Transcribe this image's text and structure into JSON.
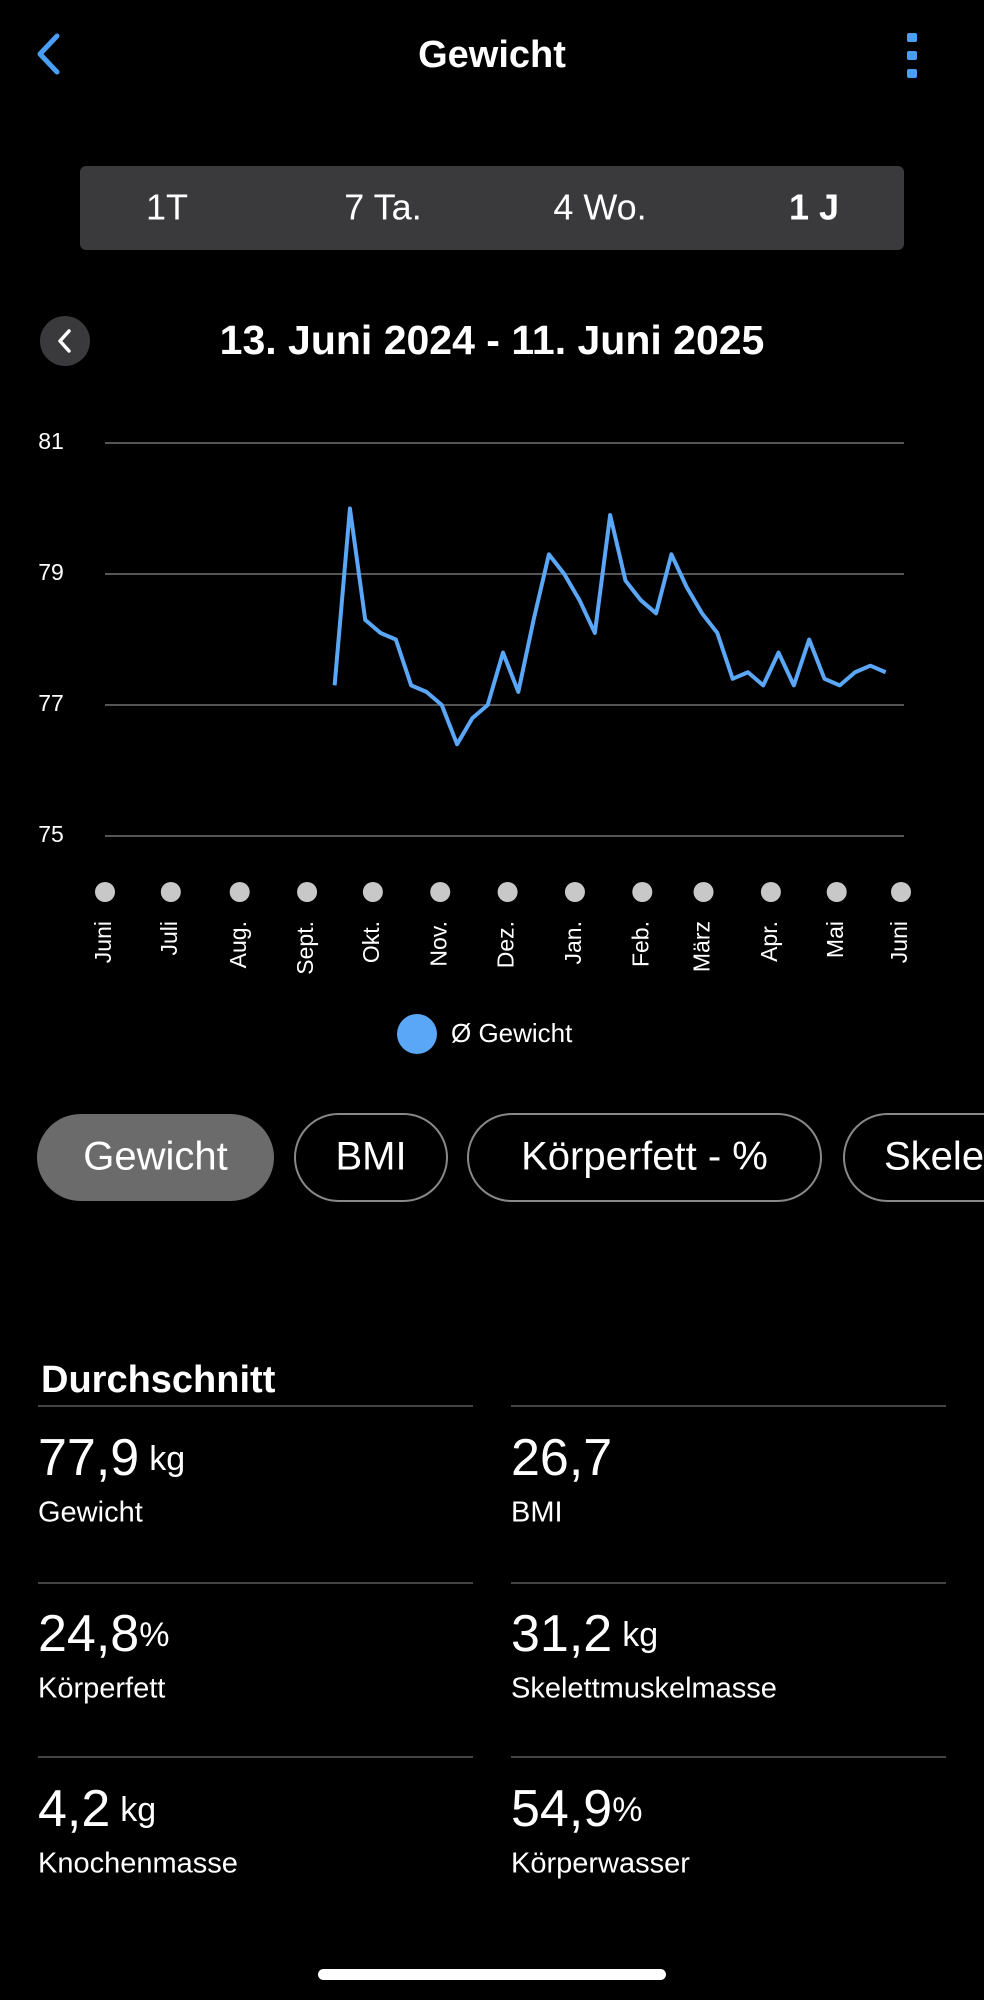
{
  "header": {
    "title": "Gewicht"
  },
  "tabs": {
    "items": [
      "1T",
      "7 Ta.",
      "4 Wo.",
      "1 J"
    ],
    "selected": 3
  },
  "date_range": "13. Juni 2024 - 11. Juni 2025",
  "chart_data": {
    "type": "line",
    "x": [
      15,
      16,
      17,
      18,
      19,
      20,
      21,
      22,
      23,
      24,
      25,
      26,
      27,
      28,
      29,
      30,
      31,
      32,
      33,
      34,
      35,
      36,
      37,
      38,
      39,
      40,
      41,
      42,
      43,
      44,
      45,
      46,
      47,
      48,
      49,
      50,
      51
    ],
    "series": [
      {
        "name": "Ø Gewicht",
        "color": "#5aa6f7",
        "values": [
          77.3,
          80.0,
          78.3,
          78.1,
          78.0,
          77.3,
          77.2,
          77.0,
          76.4,
          76.8,
          77.0,
          77.8,
          77.2,
          78.3,
          79.3,
          79.0,
          78.6,
          78.1,
          79.9,
          78.9,
          78.6,
          78.4,
          79.3,
          78.8,
          78.4,
          78.1,
          77.4,
          77.5,
          77.3,
          77.8,
          77.3,
          78.0,
          77.4,
          77.3,
          77.5,
          77.6,
          77.5
        ]
      }
    ],
    "xlim": [
      0,
      52
    ],
    "xticks": [
      {
        "value": 0,
        "label": "Juni"
      },
      {
        "value": 4.3,
        "label": "Juli"
      },
      {
        "value": 8.8,
        "label": "Aug."
      },
      {
        "value": 13.2,
        "label": "Sept."
      },
      {
        "value": 17.5,
        "label": "Okt."
      },
      {
        "value": 21.9,
        "label": "Nov."
      },
      {
        "value": 26.3,
        "label": "Dez."
      },
      {
        "value": 30.7,
        "label": "Jan."
      },
      {
        "value": 35.1,
        "label": "Feb."
      },
      {
        "value": 39.1,
        "label": "März"
      },
      {
        "value": 43.5,
        "label": "Apr."
      },
      {
        "value": 47.8,
        "label": "Mai"
      },
      {
        "value": 52,
        "label": "Juni"
      }
    ],
    "ylim": [
      75,
      81
    ],
    "yticks": [
      75,
      77,
      79,
      81
    ],
    "grid": true
  },
  "filters": {
    "items": [
      "Gewicht",
      "BMI",
      "Körperfett - %",
      "Skelettmuskelmasse"
    ],
    "selected": 0
  },
  "stats": {
    "title": "Durchschnitt",
    "items": [
      {
        "value": "77,9",
        "unit": "kg",
        "label": "Gewicht"
      },
      {
        "value": "26,7",
        "label": "BMI"
      },
      {
        "value": "24,8",
        "unit": "%",
        "label": "Körperfett"
      },
      {
        "value": "31,2",
        "unit": "kg",
        "label": "Skelettmuskelmasse"
      },
      {
        "value": "4,2",
        "unit": "kg",
        "label": "Knochenmasse"
      },
      {
        "value": "54,9",
        "unit": "%",
        "label": "Körperwasser"
      }
    ]
  }
}
